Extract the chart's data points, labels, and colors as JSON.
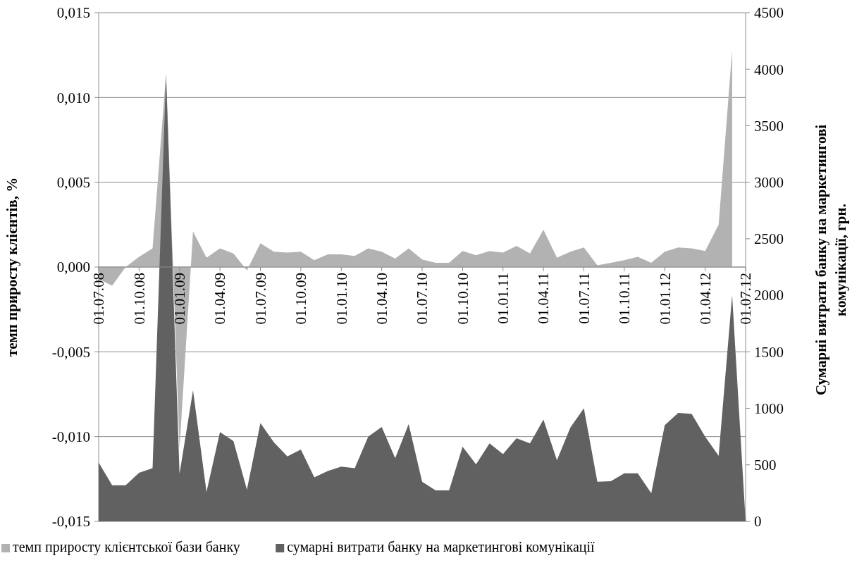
{
  "chart_data": {
    "type": "area",
    "categories": [
      "01.07.08",
      null,
      null,
      "01.10.08",
      null,
      null,
      "01.01.09",
      null,
      null,
      "01.04.09",
      null,
      null,
      "01.07.09",
      null,
      null,
      "01.10.09",
      null,
      null,
      "01.01.10",
      null,
      null,
      "01.04.10",
      null,
      null,
      "01.07.10",
      null,
      null,
      "01.10.10",
      null,
      null,
      "01.01.11",
      null,
      null,
      "01.04.11",
      null,
      null,
      "01.07.11",
      null,
      null,
      "01.10.11",
      null,
      null,
      "01.01.12",
      null,
      null,
      "01.04.12",
      null,
      null,
      "01.07.12"
    ],
    "series": [
      {
        "name": "темп приросту клієнтської бази банку",
        "color": "#b2b2b2",
        "values": [
          -0.0007,
          -0.0011,
          0.0,
          0.0006,
          0.0011,
          0.0114,
          -0.0107,
          0.0021,
          0.00055,
          0.0011,
          0.0008,
          -0.0002,
          0.0014,
          0.0009,
          0.00085,
          0.0009,
          0.0004,
          0.00075,
          0.00075,
          0.00065,
          0.0011,
          0.0009,
          0.0005,
          0.0011,
          0.00045,
          0.00025,
          0.00025,
          0.00095,
          0.0007,
          0.00095,
          0.00085,
          0.00125,
          0.0008,
          0.0022,
          0.00055,
          0.0009,
          0.00115,
          0.0001,
          0.00025,
          0.0004,
          0.0006,
          0.00025,
          0.0009,
          0.00115,
          0.0011,
          0.00095,
          0.0025,
          0.0128,
          null
        ]
      },
      {
        "name": "сумарні витрати банку на маркетингові комунікації",
        "color": "#616161",
        "axis": "y2",
        "values": [
          520,
          320,
          320,
          430,
          470,
          3950,
          420,
          1160,
          260,
          790,
          710,
          280,
          870,
          700,
          575,
          635,
          390,
          445,
          485,
          470,
          750,
          835,
          560,
          860,
          350,
          275,
          275,
          660,
          505,
          690,
          595,
          735,
          690,
          900,
          540,
          830,
          1000,
          350,
          355,
          425,
          425,
          250,
          850,
          960,
          950,
          750,
          580,
          2000,
          0
        ]
      }
    ],
    "ylabel": "темп приросту клієнтів, %",
    "y2label": "Сумарні витрати банку на маркетингові комунікації, грн.",
    "ylim": [
      -0.015,
      0.015
    ],
    "yticks": [
      {
        "value": -0.015,
        "label": "-0,015"
      },
      {
        "value": -0.01,
        "label": "-0,010"
      },
      {
        "value": -0.005,
        "label": "-0,005"
      },
      {
        "value": 0,
        "label": "0,000"
      },
      {
        "value": 0.005,
        "label": "0,005"
      },
      {
        "value": 0.01,
        "label": "0,010"
      },
      {
        "value": 0.015,
        "label": "0,015"
      }
    ],
    "y2lim": [
      0,
      4500
    ],
    "y2ticks": [
      0,
      500,
      1000,
      1500,
      2000,
      2500,
      3000,
      3500,
      4000,
      4500
    ],
    "grid": "y",
    "legend": "bottom"
  }
}
